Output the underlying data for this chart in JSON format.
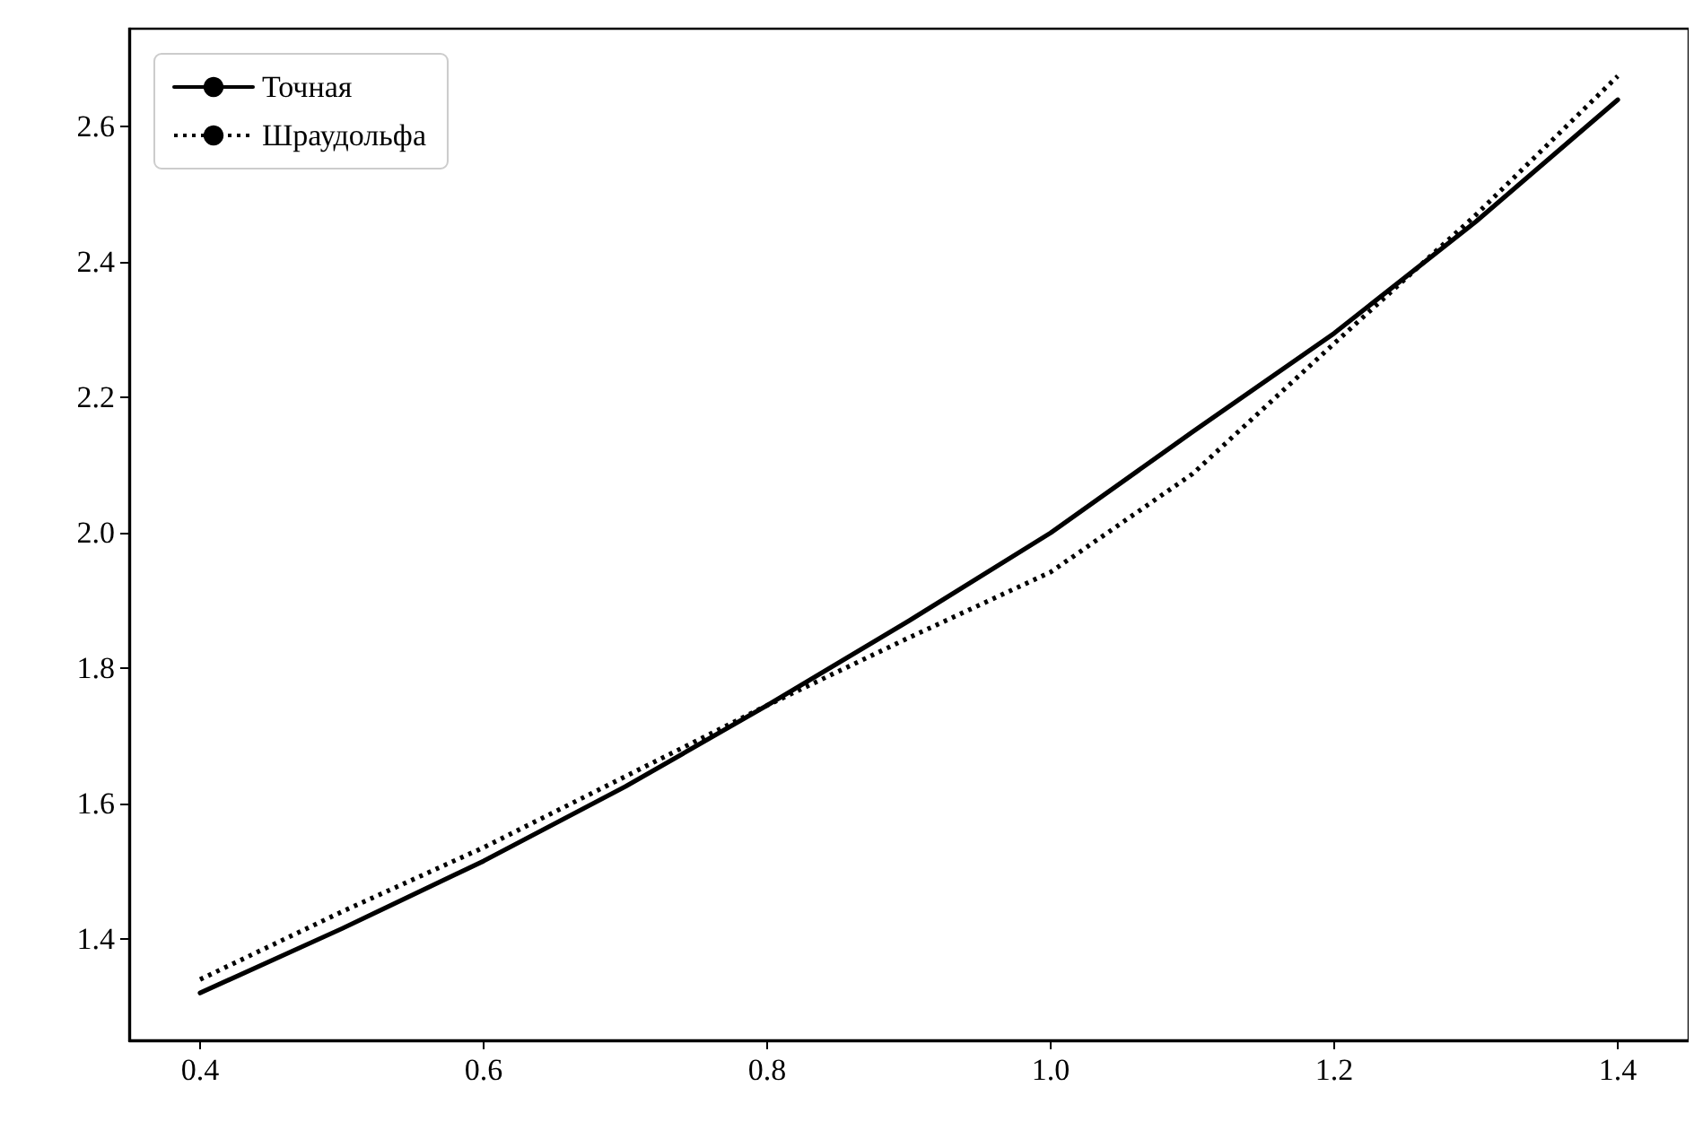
{
  "chart_data": {
    "type": "line",
    "x": [
      0.4,
      0.5,
      0.6,
      0.7,
      0.8,
      0.9,
      1.0,
      1.1,
      1.2,
      1.3,
      1.4
    ],
    "series": [
      {
        "name": "Точная",
        "color": "#000000",
        "line_style": "solid",
        "values": [
          1.32,
          1.415,
          1.515,
          1.625,
          1.745,
          1.87,
          2.0,
          2.149,
          2.295,
          2.46,
          2.64
        ]
      },
      {
        "name": "Шраудольфа",
        "color": "#000000",
        "line_style": "dotted",
        "values": [
          1.34,
          1.44,
          1.535,
          1.64,
          1.745,
          1.845,
          1.942,
          2.087,
          2.28,
          2.47,
          2.675
        ]
      }
    ],
    "xlim": [
      0.35,
      1.45
    ],
    "ylim": [
      1.25,
      2.745
    ],
    "xticks": [
      0.4,
      0.6,
      0.8,
      {
        "value": 1,
        "label": "1.0"
      },
      1.2,
      1.4
    ],
    "yticks": [
      1.4,
      1.6,
      1.8,
      {
        "value": 2,
        "label": "2.0"
      },
      2.2,
      2.4,
      2.6
    ],
    "grid": false,
    "legend": "top left",
    "marker": "none"
  }
}
